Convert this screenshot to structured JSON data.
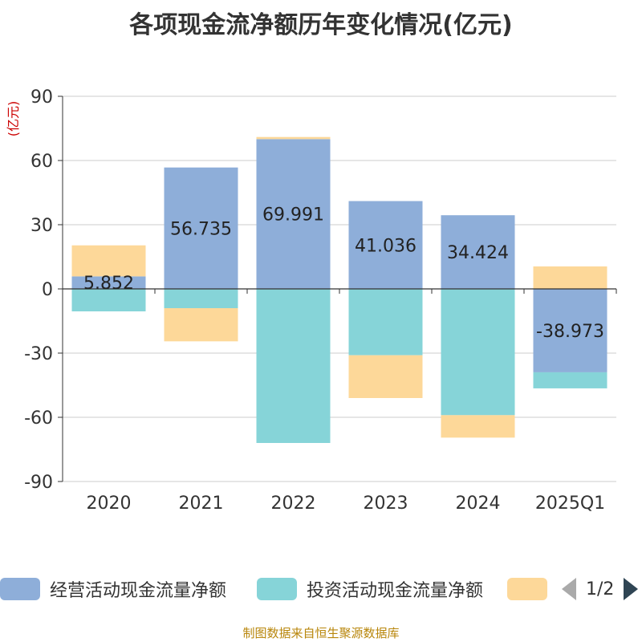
{
  "chart_data": {
    "type": "bar",
    "stacked": true,
    "title": "各项现金流净额历年变化情况(亿元)",
    "ylabel": "(亿元)",
    "ylim": [
      -90,
      90
    ],
    "yticks": [
      90,
      60,
      30,
      0,
      -30,
      -60,
      -90
    ],
    "categories": [
      "2020",
      "2021",
      "2022",
      "2023",
      "2024",
      "2025Q1"
    ],
    "series": [
      {
        "name": "经营活动现金流量净额",
        "color": "#8eaed9",
        "values": [
          5.852,
          56.735,
          69.991,
          41.036,
          34.424,
          -38.973
        ],
        "labels": [
          "5.852",
          "56.735",
          "69.991",
          "41.036",
          "34.424",
          "-38.973"
        ]
      },
      {
        "name": "投资活动现金流量净额",
        "color": "#86d4d8",
        "values": [
          -10.5,
          -9.0,
          -72.0,
          -31.0,
          -59.0,
          -7.5
        ]
      },
      {
        "name": "",
        "color": "#fdd899",
        "values": [
          14.5,
          -15.5,
          1.0,
          -20.0,
          -10.5,
          10.5
        ]
      }
    ],
    "grid": true,
    "legend_position": "bottom"
  },
  "legend": {
    "page_text": "1/2"
  },
  "source_note": "制图数据来自恒生聚源数据库"
}
